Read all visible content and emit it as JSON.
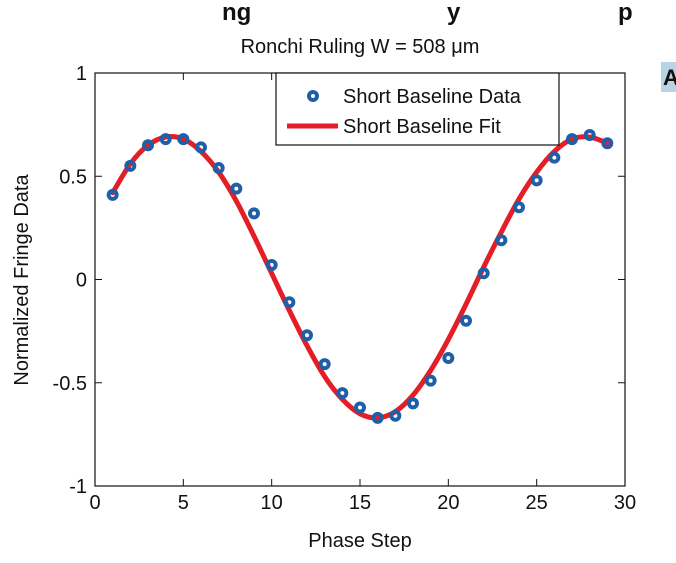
{
  "figure": {
    "top_title": "ng",
    "top_title_2": "y",
    "top_title_3": "p",
    "panel_letter": "A",
    "panel_letter_bg": "#b9d3e6"
  },
  "chart_data": {
    "type": "scatter",
    "title": "Ronchi Ruling W = 508 μm",
    "xlabel": "Phase Step",
    "ylabel": "Normalized Fringe Data",
    "xlim": [
      0,
      30
    ],
    "ylim": [
      -1,
      1
    ],
    "xticks": [
      0,
      5,
      10,
      15,
      20,
      25,
      30
    ],
    "yticks": [
      -1,
      -0.5,
      0,
      0.5,
      1
    ],
    "xtick_labels": [
      "0",
      "5",
      "10",
      "15",
      "20",
      "25",
      "30"
    ],
    "ytick_labels": [
      "-1",
      "-0.5",
      "0",
      "0.5",
      "1"
    ],
    "legend_position": "top-right",
    "grid": false,
    "series": [
      {
        "name": "Short Baseline Data",
        "kind": "markers",
        "color": "#1f5fa8",
        "x": [
          1,
          2,
          3,
          4,
          5,
          6,
          7,
          8,
          9,
          10,
          11,
          12,
          13,
          14,
          15,
          16,
          17,
          18,
          19,
          20,
          21,
          22,
          23,
          24,
          25,
          26,
          27,
          28,
          29
        ],
        "y": [
          0.41,
          0.55,
          0.65,
          0.68,
          0.68,
          0.64,
          0.54,
          0.44,
          0.32,
          0.07,
          -0.11,
          -0.27,
          -0.41,
          -0.55,
          -0.62,
          -0.67,
          -0.66,
          -0.6,
          -0.49,
          -0.38,
          -0.2,
          0.03,
          0.19,
          0.35,
          0.48,
          0.59,
          0.68,
          0.7,
          0.66
        ]
      },
      {
        "name": "Short Baseline Fit",
        "kind": "line",
        "color": "#e41e26",
        "x": [
          1,
          2,
          3,
          4,
          5,
          6,
          7,
          8,
          9,
          10,
          11,
          12,
          13,
          14,
          15,
          16,
          17,
          18,
          19,
          20,
          21,
          22,
          23,
          24,
          25,
          26,
          27,
          28,
          29
        ],
        "y": [
          0.42,
          0.56,
          0.65,
          0.69,
          0.68,
          0.62,
          0.52,
          0.38,
          0.21,
          0.03,
          -0.15,
          -0.32,
          -0.47,
          -0.58,
          -0.65,
          -0.67,
          -0.64,
          -0.56,
          -0.44,
          -0.29,
          -0.12,
          0.06,
          0.23,
          0.39,
          0.52,
          0.62,
          0.68,
          0.69,
          0.66
        ]
      }
    ]
  }
}
